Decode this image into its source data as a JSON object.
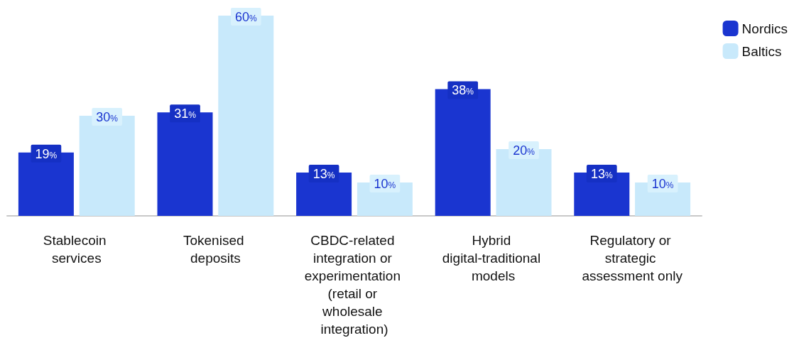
{
  "chart_data": {
    "type": "bar",
    "categories": [
      "Stablecoin services",
      "Tokenised deposits",
      "CBDC-related integration or experimentation (retail or wholesale integration)",
      "Hybrid digital-traditional models",
      "Regulatory or strategic assessment only"
    ],
    "series": [
      {
        "name": "Nordics",
        "color": "#1a35d0",
        "values": [
          19,
          31,
          13,
          38,
          13
        ],
        "value_labels": [
          "19%",
          "31%",
          "13%",
          "38%",
          "13%"
        ]
      },
      {
        "name": "Baltics",
        "color": "#c8e9fb",
        "values": [
          30,
          60,
          10,
          20,
          10
        ],
        "value_labels": [
          "30%",
          "60%",
          "10%",
          "20%",
          "10%"
        ]
      }
    ],
    "legend": "top right",
    "grid": false
  }
}
